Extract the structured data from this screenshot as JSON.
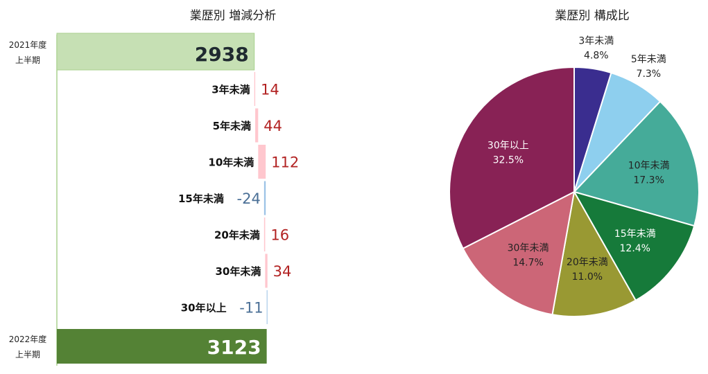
{
  "chart_data": [
    {
      "type": "bar",
      "subtype": "waterfall",
      "orientation": "horizontal",
      "title": "業歴別 増減分析",
      "start": {
        "label_line1": "2021年度",
        "label_line2": "上半期",
        "value": 2938,
        "color": "#c6e0b4"
      },
      "end": {
        "label_line1": "2022年度",
        "label_line2": "上半期",
        "value": 3123,
        "color": "#548235"
      },
      "categories": [
        "3年未満",
        "5年未満",
        "10年未満",
        "15年未満",
        "20年未満",
        "30年未満",
        "30年以上"
      ],
      "values": [
        14,
        44,
        112,
        -24,
        16,
        34,
        -11
      ],
      "positive_color": "#ffc7ce",
      "negative_color": "#9dc3e6",
      "positive_label_color": "#b22222",
      "negative_label_color": "#4a6f96"
    },
    {
      "type": "pie",
      "title": "業歴別 構成比",
      "categories": [
        "3年未満",
        "5年未満",
        "10年未満",
        "15年未満",
        "20年未満",
        "30年未満",
        "30年以上"
      ],
      "values": [
        4.8,
        7.3,
        17.3,
        12.4,
        11.0,
        14.7,
        32.5
      ],
      "labels": [
        "4.8%",
        "7.3%",
        "17.3%",
        "12.4%",
        "11.0%",
        "14.7%",
        "32.5%"
      ],
      "colors": [
        "#3a2d8f",
        "#8ecfee",
        "#45ab99",
        "#167a3a",
        "#999933",
        "#cc6677",
        "#882255"
      ],
      "label_colors": [
        "#222222",
        "#222222",
        "#222222",
        "#ffffff",
        "#222222",
        "#222222",
        "#ffffff"
      ]
    }
  ]
}
